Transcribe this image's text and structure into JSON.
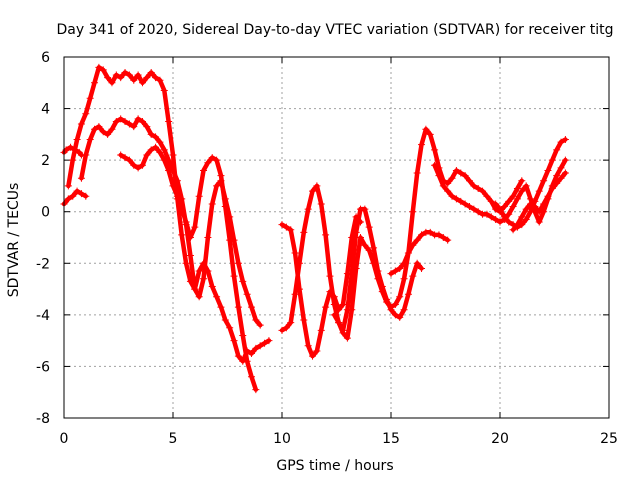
{
  "chart_data": {
    "type": "scatter",
    "title": "Day 341 of 2020, Sidereal Day-to-day VTEC variation (SDTVAR) for receiver titg",
    "xlabel": "GPS time / hours",
    "ylabel": "SDTVAR / TECUs",
    "xlim": [
      0,
      25
    ],
    "ylim": [
      -8,
      6
    ],
    "x_ticks": [
      0,
      5,
      10,
      15,
      20,
      25
    ],
    "y_ticks": [
      -8,
      -6,
      -4,
      -2,
      0,
      2,
      4,
      6
    ],
    "grid": true,
    "marker": "plus",
    "series_color": "#ff0000",
    "series": [
      {
        "x": [
          0.0,
          0.1,
          0.3,
          0.5,
          0.7,
          0.8
        ],
        "y": [
          2.3,
          2.4,
          2.5,
          2.4,
          2.3,
          2.2
        ]
      },
      {
        "x": [
          0.0,
          0.2,
          0.4,
          0.6,
          0.8,
          1.0
        ],
        "y": [
          0.3,
          0.5,
          0.6,
          0.8,
          0.7,
          0.6
        ]
      },
      {
        "x": [
          0.2,
          0.4,
          0.6,
          0.8,
          1.0,
          1.2,
          1.4,
          1.6,
          1.8,
          2.0,
          2.2,
          2.4,
          2.6,
          2.8,
          3.0,
          3.2,
          3.4,
          3.6,
          3.8,
          4.0,
          4.2,
          4.4,
          4.6,
          4.8,
          5.0,
          5.2,
          5.4,
          5.6,
          5.8,
          6.0,
          6.2,
          6.4,
          6.6,
          6.8,
          7.0,
          7.2,
          7.4,
          7.6,
          7.8,
          8.0,
          8.2,
          8.4,
          8.6,
          8.8,
          9.0,
          9.2,
          9.4
        ],
        "y": [
          1.0,
          2.0,
          2.8,
          3.4,
          3.8,
          4.4,
          5.0,
          5.6,
          5.5,
          5.2,
          5.0,
          5.3,
          5.2,
          5.4,
          5.3,
          5.1,
          5.3,
          5.0,
          5.2,
          5.4,
          5.2,
          5.1,
          4.7,
          3.5,
          2.2,
          0.5,
          -0.9,
          -2.0,
          -2.7,
          -3.0,
          -2.3,
          -2.0,
          -2.3,
          -2.9,
          -3.3,
          -3.7,
          -4.2,
          -4.5,
          -5.0,
          -5.6,
          -5.8,
          -5.4,
          -5.5,
          -5.3,
          -5.2,
          -5.1,
          -5.0
        ]
      },
      {
        "x": [
          0.8,
          1.0,
          1.2,
          1.4,
          1.6,
          1.8,
          2.0,
          2.2,
          2.4,
          2.6,
          2.8,
          3.0,
          3.2,
          3.4,
          3.6,
          3.8,
          4.0,
          4.2,
          4.4,
          4.6,
          4.8,
          5.0,
          5.2,
          5.4,
          5.6,
          5.8,
          6.0,
          6.2,
          6.4,
          6.6,
          6.8,
          7.0,
          7.2,
          7.4,
          7.6,
          7.8,
          8.0,
          8.2,
          8.4,
          8.6,
          8.8,
          9.0
        ],
        "y": [
          1.3,
          2.2,
          2.8,
          3.2,
          3.3,
          3.1,
          3.0,
          3.2,
          3.5,
          3.6,
          3.5,
          3.4,
          3.3,
          3.6,
          3.5,
          3.3,
          3.0,
          2.9,
          2.7,
          2.4,
          2.0,
          1.6,
          1.2,
          0.5,
          -0.5,
          -1.7,
          -3.0,
          -3.3,
          -2.6,
          -1.0,
          0.3,
          1.0,
          1.2,
          0.5,
          -0.2,
          -1.1,
          -2.0,
          -2.7,
          -3.2,
          -3.7,
          -4.2,
          -4.4
        ]
      },
      {
        "x": [
          2.6,
          2.8,
          3.0,
          3.2,
          3.4,
          3.6,
          3.8,
          4.0,
          4.2,
          4.4,
          4.6,
          4.8,
          5.0,
          5.2,
          5.4,
          5.6,
          5.8,
          6.0,
          6.2,
          6.4,
          6.6,
          6.8,
          7.0,
          7.2,
          7.4,
          7.6,
          7.8,
          8.0,
          8.2,
          8.4,
          8.6,
          8.8
        ],
        "y": [
          2.2,
          2.1,
          2.0,
          1.8,
          1.7,
          1.8,
          2.2,
          2.4,
          2.5,
          2.3,
          2.0,
          1.6,
          1.0,
          0.6,
          0.1,
          -0.4,
          -1.0,
          -0.6,
          0.6,
          1.6,
          1.9,
          2.1,
          2.0,
          1.4,
          0.2,
          -1.1,
          -2.5,
          -3.7,
          -4.8,
          -5.8,
          -6.4,
          -6.9
        ]
      },
      {
        "x": [
          10.0,
          10.2,
          10.4,
          10.6,
          10.8,
          11.0,
          11.2,
          11.4,
          11.6,
          11.8,
          12.0,
          12.2,
          12.4,
          12.6,
          12.8,
          13.0,
          13.2,
          13.4,
          13.6,
          13.8,
          14.0,
          14.2,
          14.4,
          14.6,
          14.8,
          15.0,
          15.2,
          15.4,
          15.6,
          15.8,
          16.0,
          16.2,
          16.4
        ],
        "y": [
          -4.6,
          -4.5,
          -4.3,
          -3.2,
          -2.0,
          -0.8,
          0.1,
          0.8,
          1.0,
          0.3,
          -0.9,
          -2.5,
          -3.6,
          -4.3,
          -4.6,
          -3.8,
          -2.4,
          -0.8,
          0.1,
          0.1,
          -0.6,
          -1.4,
          -2.3,
          -2.9,
          -3.4,
          -3.8,
          -4.0,
          -4.1,
          -3.8,
          -3.2,
          -2.5,
          -2.0,
          -2.2
        ]
      },
      {
        "x": [
          10.0,
          10.2,
          10.4,
          10.6,
          10.8,
          11.0,
          11.2,
          11.4,
          11.6,
          11.8,
          12.0,
          12.2,
          12.4,
          12.6,
          12.8,
          13.0,
          13.2,
          13.4,
          13.6
        ],
        "y": [
          -0.5,
          -0.6,
          -0.7,
          -1.6,
          -3.0,
          -4.2,
          -5.2,
          -5.6,
          -5.4,
          -4.6,
          -3.7,
          -3.1,
          -3.3,
          -3.8,
          -3.6,
          -2.4,
          -1.0,
          -0.2,
          -0.4
        ]
      },
      {
        "x": [
          12.4,
          12.6,
          12.8,
          13.0,
          13.2,
          13.4,
          13.6,
          13.8,
          14.0,
          14.2,
          14.4,
          14.6,
          14.8,
          15.0,
          15.2,
          15.4,
          15.6,
          15.8,
          16.0,
          16.2,
          16.4,
          16.6,
          16.8,
          17.0,
          17.2,
          17.4,
          17.6,
          17.8,
          18.0,
          18.2,
          18.4,
          18.6,
          18.8,
          19.0,
          19.2,
          19.4,
          19.6,
          19.8,
          20.0,
          20.2,
          20.4,
          20.6,
          20.8,
          21.0
        ],
        "y": [
          -4.0,
          -4.3,
          -4.7,
          -4.9,
          -3.8,
          -2.2,
          -1.0,
          -1.3,
          -1.5,
          -2.0,
          -2.6,
          -3.1,
          -3.5,
          -3.7,
          -3.6,
          -3.3,
          -2.6,
          -1.6,
          0.0,
          1.5,
          2.6,
          3.2,
          3.0,
          2.4,
          1.7,
          1.2,
          1.1,
          1.3,
          1.6,
          1.5,
          1.4,
          1.2,
          1.0,
          0.9,
          0.8,
          0.6,
          0.4,
          0.1,
          0.0,
          0.2,
          0.4,
          0.6,
          0.9,
          1.2
        ]
      },
      {
        "x": [
          15.0,
          15.2,
          15.4,
          15.6,
          15.8,
          16.0,
          16.2,
          16.4,
          16.6,
          16.8,
          17.0,
          17.2,
          17.4,
          17.6
        ],
        "y": [
          -2.4,
          -2.3,
          -2.2,
          -2.0,
          -1.6,
          -1.3,
          -1.1,
          -0.9,
          -0.8,
          -0.8,
          -0.9,
          -0.9,
          -1.0,
          -1.1
        ]
      },
      {
        "x": [
          17.0,
          17.2,
          17.4,
          17.6,
          17.8,
          18.0,
          18.2,
          18.4,
          18.6,
          18.8,
          19.0,
          19.2,
          19.4,
          19.6,
          19.8,
          20.0,
          20.2,
          20.4,
          20.6,
          20.8,
          21.0,
          21.2,
          21.4,
          21.6,
          21.8,
          22.0,
          22.2,
          22.4,
          22.6,
          22.8,
          23.0
        ],
        "y": [
          1.8,
          1.4,
          1.0,
          0.8,
          0.6,
          0.5,
          0.4,
          0.3,
          0.2,
          0.1,
          0.0,
          -0.1,
          -0.1,
          -0.2,
          -0.3,
          -0.4,
          -0.3,
          -0.1,
          0.2,
          0.5,
          0.8,
          1.0,
          0.5,
          0.0,
          -0.4,
          0.0,
          0.5,
          1.0,
          1.4,
          1.7,
          2.0
        ]
      },
      {
        "x": [
          19.8,
          20.0,
          20.2,
          20.4,
          20.6,
          20.8,
          21.0,
          21.2,
          21.4,
          21.6,
          21.8,
          22.0,
          22.2,
          22.4,
          22.6,
          22.8,
          23.0
        ],
        "y": [
          0.3,
          0.1,
          -0.2,
          -0.4,
          -0.5,
          -0.6,
          -0.5,
          -0.3,
          0.0,
          0.4,
          0.8,
          1.2,
          1.6,
          2.0,
          2.4,
          2.7,
          2.8
        ]
      },
      {
        "x": [
          20.6,
          20.8,
          21.0,
          21.2,
          21.4,
          21.6,
          21.8,
          22.0,
          22.2,
          22.4,
          22.6,
          22.8,
          23.0
        ],
        "y": [
          -0.7,
          -0.5,
          -0.2,
          0.1,
          0.3,
          0.2,
          0.0,
          0.3,
          0.6,
          0.9,
          1.1,
          1.3,
          1.5
        ]
      }
    ]
  }
}
